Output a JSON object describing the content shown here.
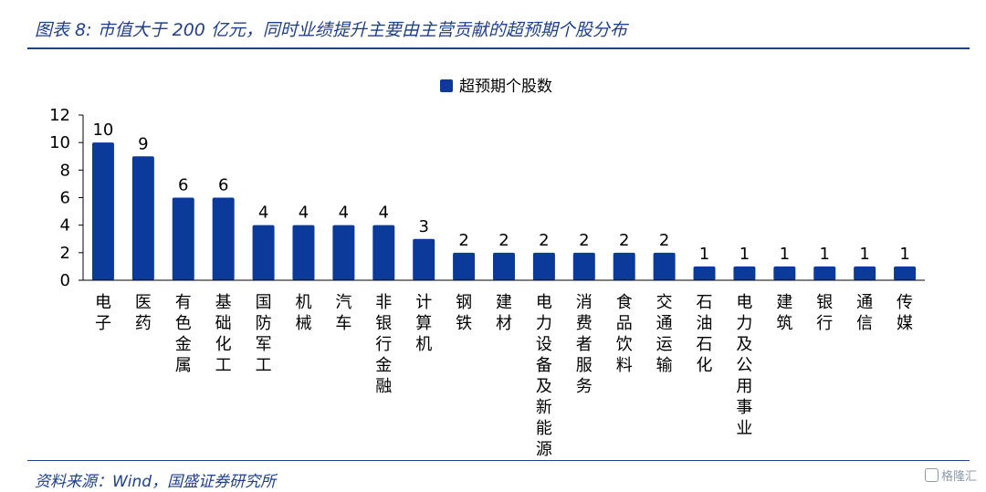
{
  "figure": {
    "title": "图表 8: 市值大于 200 亿元，同时业绩提升主要由主营贡献的超预期个股分布",
    "source": "资料来源：Wind，国盛证券研究所",
    "watermark": "格隆汇",
    "accent_color": "#1f3f8f"
  },
  "chart_data": {
    "type": "bar",
    "categories": [
      "电子",
      "医药",
      "有色金属",
      "基础化工",
      "国防军工",
      "机械",
      "汽车",
      "非银行金融",
      "计算机",
      "钢铁",
      "建材",
      "电力设备及新能源",
      "消费者服务",
      "食品饮料",
      "交通运输",
      "石油石化",
      "电力及公用事业",
      "建筑",
      "银行",
      "通信",
      "传媒"
    ],
    "series": [
      {
        "name": "超预期个股数",
        "values": [
          10,
          9,
          6,
          6,
          4,
          4,
          4,
          4,
          3,
          2,
          2,
          2,
          2,
          2,
          2,
          1,
          1,
          1,
          1,
          1,
          1
        ],
        "color": "#0b3a9a"
      }
    ],
    "ylim": [
      0,
      12
    ],
    "yticks": [
      0,
      2,
      4,
      6,
      8,
      10,
      12
    ],
    "legend_position": "top-center",
    "grid": false
  }
}
